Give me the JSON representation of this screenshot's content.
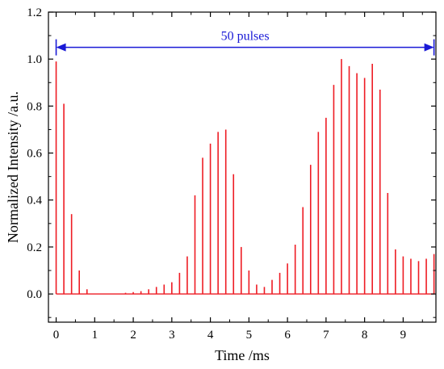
{
  "chart_data": {
    "type": "bar",
    "title": "",
    "xlabel": "Time /ms",
    "ylabel": "Normalized Intensity /a.u.",
    "xlim": [
      -0.2,
      9.85
    ],
    "ylim": [
      -0.12,
      1.2
    ],
    "xticks": [
      0,
      1,
      2,
      3,
      4,
      5,
      6,
      7,
      8,
      9
    ],
    "yticks": [
      0.0,
      0.2,
      0.4,
      0.6,
      0.8,
      1.0,
      1.2
    ],
    "ytick_labels": [
      "0.0",
      "0.2",
      "0.4",
      "0.6",
      "0.8",
      "1.0",
      "1.2"
    ],
    "grid": false,
    "legend": "none",
    "series": [
      {
        "color": "#ee1c24",
        "x": [
          0.0,
          0.2,
          0.4,
          0.6,
          0.8,
          1.0,
          1.2,
          1.4,
          1.6,
          1.8,
          2.0,
          2.2,
          2.4,
          2.6,
          2.8,
          3.0,
          3.2,
          3.4,
          3.6,
          3.8,
          4.0,
          4.2,
          4.4,
          4.6,
          4.8,
          5.0,
          5.2,
          5.4,
          5.6,
          5.8,
          6.0,
          6.2,
          6.4,
          6.6,
          6.8,
          7.0,
          7.2,
          7.4,
          7.6,
          7.8,
          8.0,
          8.2,
          8.4,
          8.6,
          8.8,
          9.0,
          9.2,
          9.4,
          9.6,
          9.8
        ],
        "values": [
          0.99,
          0.81,
          0.34,
          0.1,
          0.02,
          0.0,
          0.0,
          0.0,
          0.0,
          0.005,
          0.008,
          0.012,
          0.02,
          0.03,
          0.04,
          0.05,
          0.09,
          0.16,
          0.42,
          0.58,
          0.64,
          0.69,
          0.7,
          0.51,
          0.2,
          0.1,
          0.04,
          0.03,
          0.06,
          0.09,
          0.13,
          0.21,
          0.37,
          0.55,
          0.69,
          0.75,
          0.89,
          1.0,
          0.97,
          0.94,
          0.92,
          0.98,
          0.87,
          0.43,
          0.19,
          0.16,
          0.15,
          0.14,
          0.15,
          0.17
        ]
      }
    ],
    "baseline": 0.0,
    "annotation": {
      "text": "50 pulses",
      "color": "#1a1ad6",
      "x_start": 0.0,
      "x_end": 9.8,
      "y": 1.05
    }
  }
}
